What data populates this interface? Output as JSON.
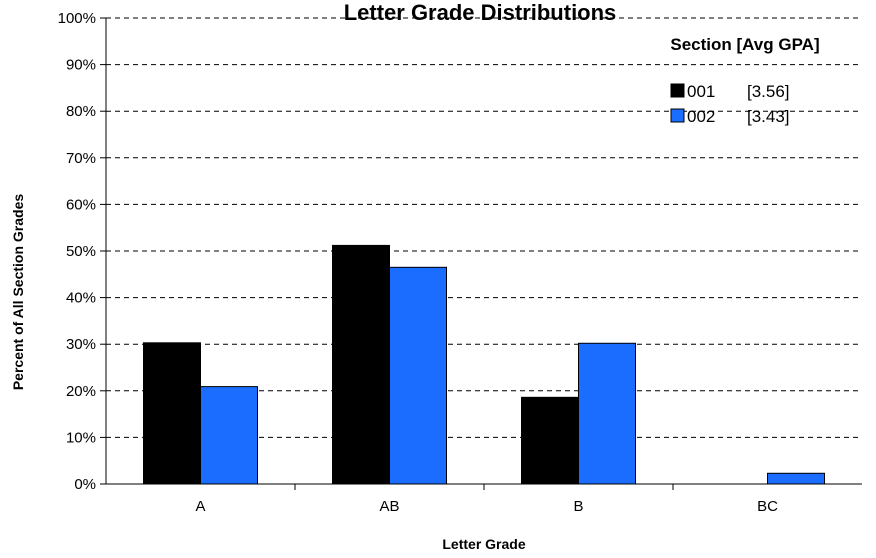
{
  "chart_data": {
    "type": "bar",
    "title": "Letter Grade Distributions",
    "xlabel": "Letter Grade",
    "ylabel": "Percent of All Section Grades",
    "categories": [
      "A",
      "AB",
      "B",
      "BC"
    ],
    "series": [
      {
        "name": "001",
        "gpa_label": "[3.56]",
        "color": "#000000",
        "values": [
          30.3,
          51.2,
          18.6,
          0
        ]
      },
      {
        "name": "002",
        "gpa_label": "[3.43]",
        "color": "#1a6dff",
        "values": [
          20.9,
          46.5,
          30.2,
          2.3
        ]
      }
    ],
    "ylim": [
      0,
      100
    ],
    "yticks": [
      0,
      10,
      20,
      30,
      40,
      50,
      60,
      70,
      80,
      90,
      100
    ],
    "ytick_labels": [
      "0%",
      "10%",
      "20%",
      "30%",
      "40%",
      "50%",
      "60%",
      "70%",
      "80%",
      "90%",
      "100%"
    ],
    "grid": true,
    "legend": {
      "title": "Section [Avg GPA]",
      "position": "top-right"
    }
  }
}
